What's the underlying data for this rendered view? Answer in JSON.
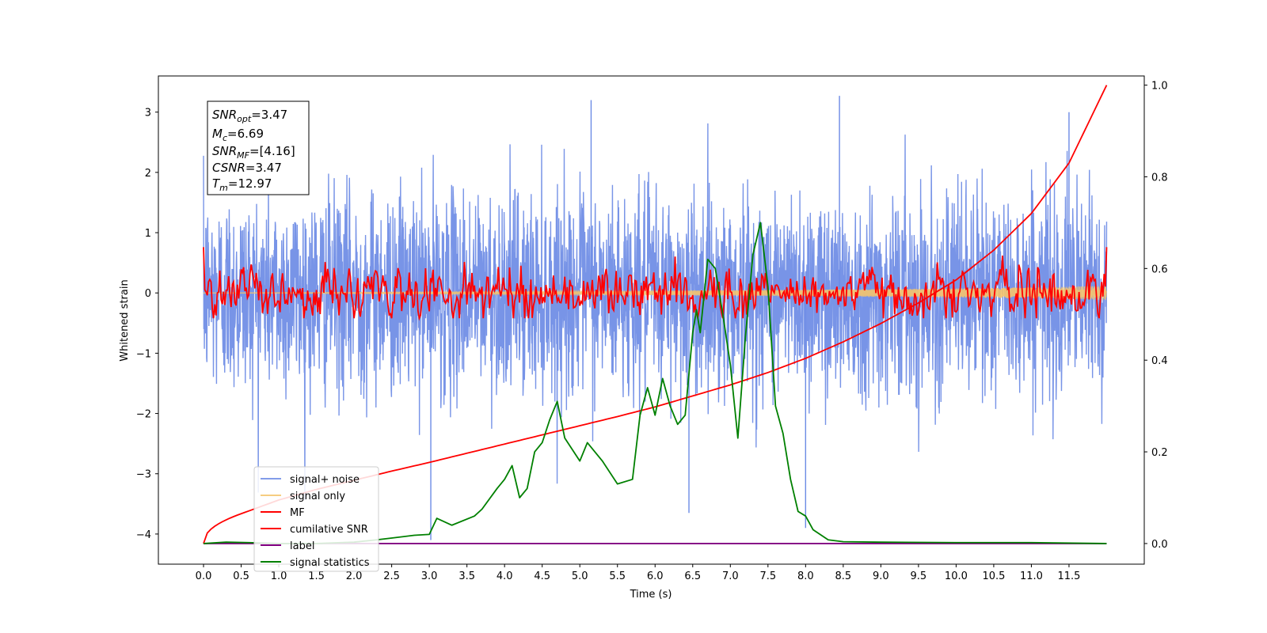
{
  "chart_data": {
    "type": "line",
    "xlabel": "Time (s)",
    "ylabel": "Whitened strain",
    "xlim": [
      -0.6,
      12.5
    ],
    "ylim": [
      -4.5,
      3.6
    ],
    "y2lim": [
      -0.045,
      1.02
    ],
    "x_ticks": [
      "0.0",
      "0.5",
      "1.0",
      "1.5",
      "2.0",
      "2.5",
      "3.0",
      "3.5",
      "4.0",
      "4.5",
      "5.0",
      "5.5",
      "6.0",
      "6.5",
      "7.0",
      "7.5",
      "8.0",
      "8.5",
      "9.0",
      "9.5",
      "10.0",
      "10.5",
      "11.0",
      "11.5"
    ],
    "y_ticks": [
      "3",
      "2",
      "1",
      "0",
      "−1",
      "−2",
      "−3",
      "−4"
    ],
    "y2_ticks": [
      "1.0",
      "0.8",
      "0.6",
      "0.4",
      "0.2",
      "0.0"
    ],
    "legend_position": "lower-left",
    "annotation": {
      "snr_opt": "=3.47",
      "mc": "=6.69",
      "snr_mf": "=[4.16]",
      "csnr": "=3.47",
      "tm": "=12.97"
    },
    "series": [
      {
        "name": "signal+ noise",
        "color": "#6c8be5",
        "axis": "left",
        "description_range": [
          -4.1,
          3.27
        ],
        "duration": [
          0,
          12.0
        ]
      },
      {
        "name": "signal only",
        "color": "#f5c46b",
        "axis": "left",
        "amplitude_end": 0.12
      },
      {
        "name": "MF",
        "color": "#ff0000",
        "axis": "left",
        "envelope": [
          -0.45,
          0.8
        ]
      },
      {
        "name": "cumilative SNR",
        "color": "#ff0000",
        "axis": "right",
        "x": [
          0,
          0.5,
          1,
          1.5,
          2,
          2.5,
          3,
          3.5,
          4,
          4.5,
          5,
          5.5,
          6,
          6.5,
          7,
          7.5,
          8,
          8.5,
          9,
          9.5,
          10,
          10.5,
          11,
          11.5,
          12
        ],
        "values": [
          0.0,
          0.065,
          0.095,
          0.118,
          0.138,
          0.158,
          0.177,
          0.197,
          0.217,
          0.237,
          0.257,
          0.277,
          0.298,
          0.322,
          0.346,
          0.373,
          0.404,
          0.44,
          0.48,
          0.525,
          0.575,
          0.64,
          0.72,
          0.83,
          1.0
        ]
      },
      {
        "name": "label",
        "color": "#800080",
        "axis": "right",
        "x": [
          0,
          12
        ],
        "values": [
          0.0,
          0.0
        ]
      },
      {
        "name": "signal statistics",
        "color": "#008000",
        "axis": "right",
        "x": [
          0,
          0.3,
          0.6,
          1.0,
          1.5,
          2.0,
          2.3,
          2.5,
          2.8,
          3.0,
          3.1,
          3.3,
          3.6,
          3.7,
          3.9,
          4.0,
          4.1,
          4.2,
          4.3,
          4.4,
          4.5,
          4.6,
          4.7,
          4.8,
          5.0,
          5.1,
          5.2,
          5.3,
          5.5,
          5.7,
          5.8,
          5.9,
          6.0,
          6.1,
          6.2,
          6.3,
          6.4,
          6.5,
          6.55,
          6.6,
          6.7,
          6.8,
          6.9,
          7.0,
          7.1,
          7.2,
          7.3,
          7.4,
          7.5,
          7.6,
          7.7,
          7.8,
          7.9,
          8.0,
          8.1,
          8.3,
          8.5,
          9.0,
          10.0,
          11.0,
          12.0
        ],
        "values": [
          0.0,
          0.003,
          0.002,
          0.0,
          0.0,
          0.003,
          0.008,
          0.012,
          0.018,
          0.02,
          0.055,
          0.04,
          0.06,
          0.075,
          0.12,
          0.14,
          0.17,
          0.1,
          0.12,
          0.2,
          0.22,
          0.27,
          0.31,
          0.23,
          0.18,
          0.22,
          0.2,
          0.18,
          0.13,
          0.14,
          0.28,
          0.34,
          0.28,
          0.36,
          0.3,
          0.26,
          0.28,
          0.46,
          0.51,
          0.46,
          0.62,
          0.6,
          0.5,
          0.39,
          0.23,
          0.45,
          0.63,
          0.7,
          0.56,
          0.3,
          0.24,
          0.14,
          0.07,
          0.06,
          0.03,
          0.008,
          0.004,
          0.003,
          0.002,
          0.002,
          0.0
        ]
      }
    ]
  }
}
